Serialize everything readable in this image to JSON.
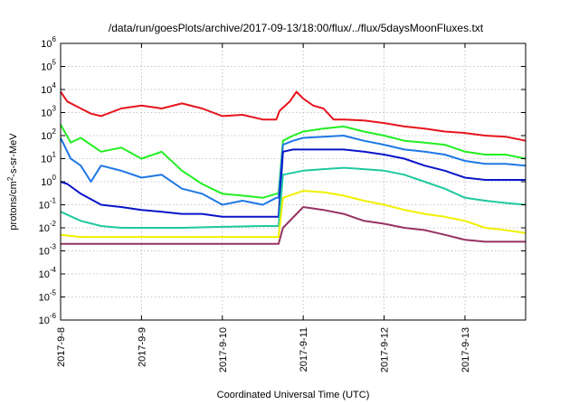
{
  "chart_data": {
    "type": "line",
    "title": "/data/run/goesPlots/archive/2017-09-13/18:00/flux/../flux/5daysMoonFluxes.txt",
    "xlabel": "Coordinated Universal Time (UTC)",
    "ylabel": "protons/cm²-s-sr-MeV",
    "ylabel_parts": {
      "pre": "protons/cm",
      "sup": "2",
      "post": "-s-sr-MeV"
    },
    "y_scale": "log",
    "ylim": [
      1e-06,
      1000000.0
    ],
    "xlim": [
      "2017-09-08 00:00",
      "2017-09-13 18:00"
    ],
    "grid": true,
    "legend": "none",
    "x_ticks": [
      "2017-9-8",
      "2017-9-9",
      "2017-9-10",
      "2017-9-11",
      "2017-9-12",
      "2017-9-13"
    ],
    "y_ticks": [
      {
        "value": 1e-06,
        "base": "10",
        "exp": "-6"
      },
      {
        "value": 1e-05,
        "base": "10",
        "exp": "-5"
      },
      {
        "value": 0.0001,
        "base": "10",
        "exp": "-4"
      },
      {
        "value": 0.001,
        "base": "10",
        "exp": "-3"
      },
      {
        "value": 0.01,
        "base": "10",
        "exp": "-2"
      },
      {
        "value": 0.1,
        "base": "10",
        "exp": "-1"
      },
      {
        "value": 1.0,
        "base": "10",
        "exp": "0"
      },
      {
        "value": 10.0,
        "base": "10",
        "exp": "1"
      },
      {
        "value": 100.0,
        "base": "10",
        "exp": "2"
      },
      {
        "value": 1000.0,
        "base": "10",
        "exp": "3"
      },
      {
        "value": 10000.0,
        "base": "10",
        "exp": "4"
      },
      {
        "value": 100000.0,
        "base": "10",
        "exp": "5"
      },
      {
        "value": 1000000.0,
        "base": "10",
        "exp": "6"
      }
    ],
    "series": [
      {
        "color": "#e8141c",
        "x": [
          "2017-09-08 00:00",
          "2017-09-08 02:00",
          "2017-09-08 06:00",
          "2017-09-08 09:00",
          "2017-09-08 12:00",
          "2017-09-08 18:00",
          "2017-09-09 00:00",
          "2017-09-09 06:00",
          "2017-09-09 12:00",
          "2017-09-09 18:00",
          "2017-09-10 00:00",
          "2017-09-10 06:00",
          "2017-09-10 12:00",
          "2017-09-10 16:00",
          "2017-09-10 17:00",
          "2017-09-10 20:00",
          "2017-09-10 22:00",
          "2017-09-11 00:00",
          "2017-09-11 03:00",
          "2017-09-11 06:00",
          "2017-09-11 09:00",
          "2017-09-11 12:00",
          "2017-09-11 18:00",
          "2017-09-12 00:00",
          "2017-09-12 06:00",
          "2017-09-12 12:00",
          "2017-09-12 18:00",
          "2017-09-13 00:00",
          "2017-09-13 06:00",
          "2017-09-13 12:00",
          "2017-09-13 18:00"
        ],
        "y": [
          8000,
          3000,
          1500,
          900,
          700,
          1500,
          2000,
          1500,
          2500,
          1500,
          700,
          800,
          500,
          500,
          1200,
          3000,
          8000,
          4000,
          2000,
          1500,
          500,
          500,
          450,
          350,
          250,
          200,
          150,
          130,
          100,
          90,
          60
        ]
      },
      {
        "color": "#22ee22",
        "x": [
          "2017-09-08 00:00",
          "2017-09-08 03:00",
          "2017-09-08 06:00",
          "2017-09-08 12:00",
          "2017-09-08 18:00",
          "2017-09-09 00:00",
          "2017-09-09 06:00",
          "2017-09-09 12:00",
          "2017-09-09 18:00",
          "2017-09-10 00:00",
          "2017-09-10 06:00",
          "2017-09-10 12:00",
          "2017-09-10 16:00",
          "2017-09-10 16:40",
          "2017-09-10 18:00",
          "2017-09-10 21:00",
          "2017-09-11 00:00",
          "2017-09-11 06:00",
          "2017-09-11 12:00",
          "2017-09-11 18:00",
          "2017-09-12 00:00",
          "2017-09-12 06:00",
          "2017-09-12 12:00",
          "2017-09-12 18:00",
          "2017-09-13 00:00",
          "2017-09-13 06:00",
          "2017-09-13 12:00",
          "2017-09-13 18:00"
        ],
        "y": [
          300,
          50,
          80,
          20,
          30,
          10,
          20,
          3,
          0.8,
          0.3,
          0.25,
          0.2,
          0.3,
          0.3,
          60,
          100,
          150,
          200,
          250,
          150,
          100,
          60,
          50,
          40,
          20,
          15,
          15,
          10
        ]
      },
      {
        "color": "#1e78e6",
        "x": [
          "2017-09-08 00:00",
          "2017-09-08 03:00",
          "2017-09-08 06:00",
          "2017-09-08 09:00",
          "2017-09-08 12:00",
          "2017-09-08 18:00",
          "2017-09-09 00:00",
          "2017-09-09 06:00",
          "2017-09-09 12:00",
          "2017-09-09 18:00",
          "2017-09-10 00:00",
          "2017-09-10 06:00",
          "2017-09-10 12:00",
          "2017-09-10 16:00",
          "2017-09-10 16:40",
          "2017-09-10 18:00",
          "2017-09-10 21:00",
          "2017-09-11 00:00",
          "2017-09-11 06:00",
          "2017-09-11 12:00",
          "2017-09-11 18:00",
          "2017-09-12 00:00",
          "2017-09-12 06:00",
          "2017-09-12 12:00",
          "2017-09-12 18:00",
          "2017-09-13 00:00",
          "2017-09-13 06:00",
          "2017-09-13 12:00",
          "2017-09-13 18:00"
        ],
        "y": [
          80,
          10,
          5,
          1,
          5,
          3,
          1.5,
          2,
          0.5,
          0.3,
          0.1,
          0.15,
          0.1,
          0.2,
          0.2,
          40,
          60,
          80,
          90,
          100,
          60,
          40,
          25,
          20,
          15,
          8,
          6,
          6,
          5
        ]
      },
      {
        "color": "#0a14c8",
        "x": [
          "2017-09-08 00:00",
          "2017-09-08 02:00",
          "2017-09-08 06:00",
          "2017-09-08 12:00",
          "2017-09-08 18:00",
          "2017-09-09 00:00",
          "2017-09-09 06:00",
          "2017-09-09 12:00",
          "2017-09-09 18:00",
          "2017-09-10 00:00",
          "2017-09-10 06:00",
          "2017-09-10 12:00",
          "2017-09-10 16:00",
          "2017-09-10 16:40",
          "2017-09-10 18:00",
          "2017-09-10 21:00",
          "2017-09-11 00:00",
          "2017-09-11 06:00",
          "2017-09-11 12:00",
          "2017-09-11 18:00",
          "2017-09-12 00:00",
          "2017-09-12 06:00",
          "2017-09-12 12:00",
          "2017-09-12 18:00",
          "2017-09-13 00:00",
          "2017-09-13 06:00",
          "2017-09-13 12:00",
          "2017-09-13 18:00"
        ],
        "y": [
          1,
          0.8,
          0.3,
          0.1,
          0.08,
          0.06,
          0.05,
          0.04,
          0.04,
          0.03,
          0.03,
          0.03,
          0.03,
          0.03,
          20,
          25,
          25,
          25,
          25,
          20,
          15,
          10,
          5,
          3,
          1.5,
          1.2,
          1.2,
          1.2
        ]
      },
      {
        "color": "#1ec8a0",
        "x": [
          "2017-09-08 00:00",
          "2017-09-08 06:00",
          "2017-09-08 12:00",
          "2017-09-08 18:00",
          "2017-09-09 00:00",
          "2017-09-09 12:00",
          "2017-09-10 00:00",
          "2017-09-10 12:00",
          "2017-09-10 16:40",
          "2017-09-10 18:00",
          "2017-09-11 00:00",
          "2017-09-11 06:00",
          "2017-09-11 12:00",
          "2017-09-11 18:00",
          "2017-09-12 00:00",
          "2017-09-12 06:00",
          "2017-09-12 12:00",
          "2017-09-12 18:00",
          "2017-09-13 00:00",
          "2017-09-13 06:00",
          "2017-09-13 12:00",
          "2017-09-13 18:00"
        ],
        "y": [
          0.05,
          0.02,
          0.012,
          0.01,
          0.01,
          0.01,
          0.011,
          0.012,
          0.012,
          2,
          3,
          3.5,
          4,
          3.5,
          3,
          2,
          1,
          0.5,
          0.2,
          0.15,
          0.12,
          0.1
        ]
      },
      {
        "color": "#f0f000",
        "x": [
          "2017-09-08 00:00",
          "2017-09-08 06:00",
          "2017-09-08 12:00",
          "2017-09-09 00:00",
          "2017-09-09 12:00",
          "2017-09-10 00:00",
          "2017-09-10 12:00",
          "2017-09-10 16:40",
          "2017-09-10 18:00",
          "2017-09-11 00:00",
          "2017-09-11 06:00",
          "2017-09-11 12:00",
          "2017-09-11 18:00",
          "2017-09-12 00:00",
          "2017-09-12 06:00",
          "2017-09-12 12:00",
          "2017-09-12 18:00",
          "2017-09-13 00:00",
          "2017-09-13 06:00",
          "2017-09-13 12:00",
          "2017-09-13 18:00"
        ],
        "y": [
          0.005,
          0.004,
          0.004,
          0.004,
          0.004,
          0.004,
          0.004,
          0.004,
          0.2,
          0.4,
          0.35,
          0.25,
          0.15,
          0.1,
          0.06,
          0.04,
          0.03,
          0.02,
          0.01,
          0.008,
          0.006
        ]
      },
      {
        "color": "#963264",
        "x": [
          "2017-09-08 00:00",
          "2017-09-08 06:00",
          "2017-09-08 12:00",
          "2017-09-09 00:00",
          "2017-09-09 12:00",
          "2017-09-10 00:00",
          "2017-09-10 12:00",
          "2017-09-10 16:40",
          "2017-09-10 18:00",
          "2017-09-11 00:00",
          "2017-09-11 06:00",
          "2017-09-11 12:00",
          "2017-09-11 18:00",
          "2017-09-12 00:00",
          "2017-09-12 06:00",
          "2017-09-12 12:00",
          "2017-09-12 18:00",
          "2017-09-13 00:00",
          "2017-09-13 06:00",
          "2017-09-13 12:00",
          "2017-09-13 18:00"
        ],
        "y": [
          0.002,
          0.002,
          0.002,
          0.002,
          0.002,
          0.002,
          0.002,
          0.002,
          0.01,
          0.08,
          0.06,
          0.04,
          0.02,
          0.015,
          0.01,
          0.008,
          0.005,
          0.003,
          0.0025,
          0.0025,
          0.0025
        ]
      }
    ]
  }
}
